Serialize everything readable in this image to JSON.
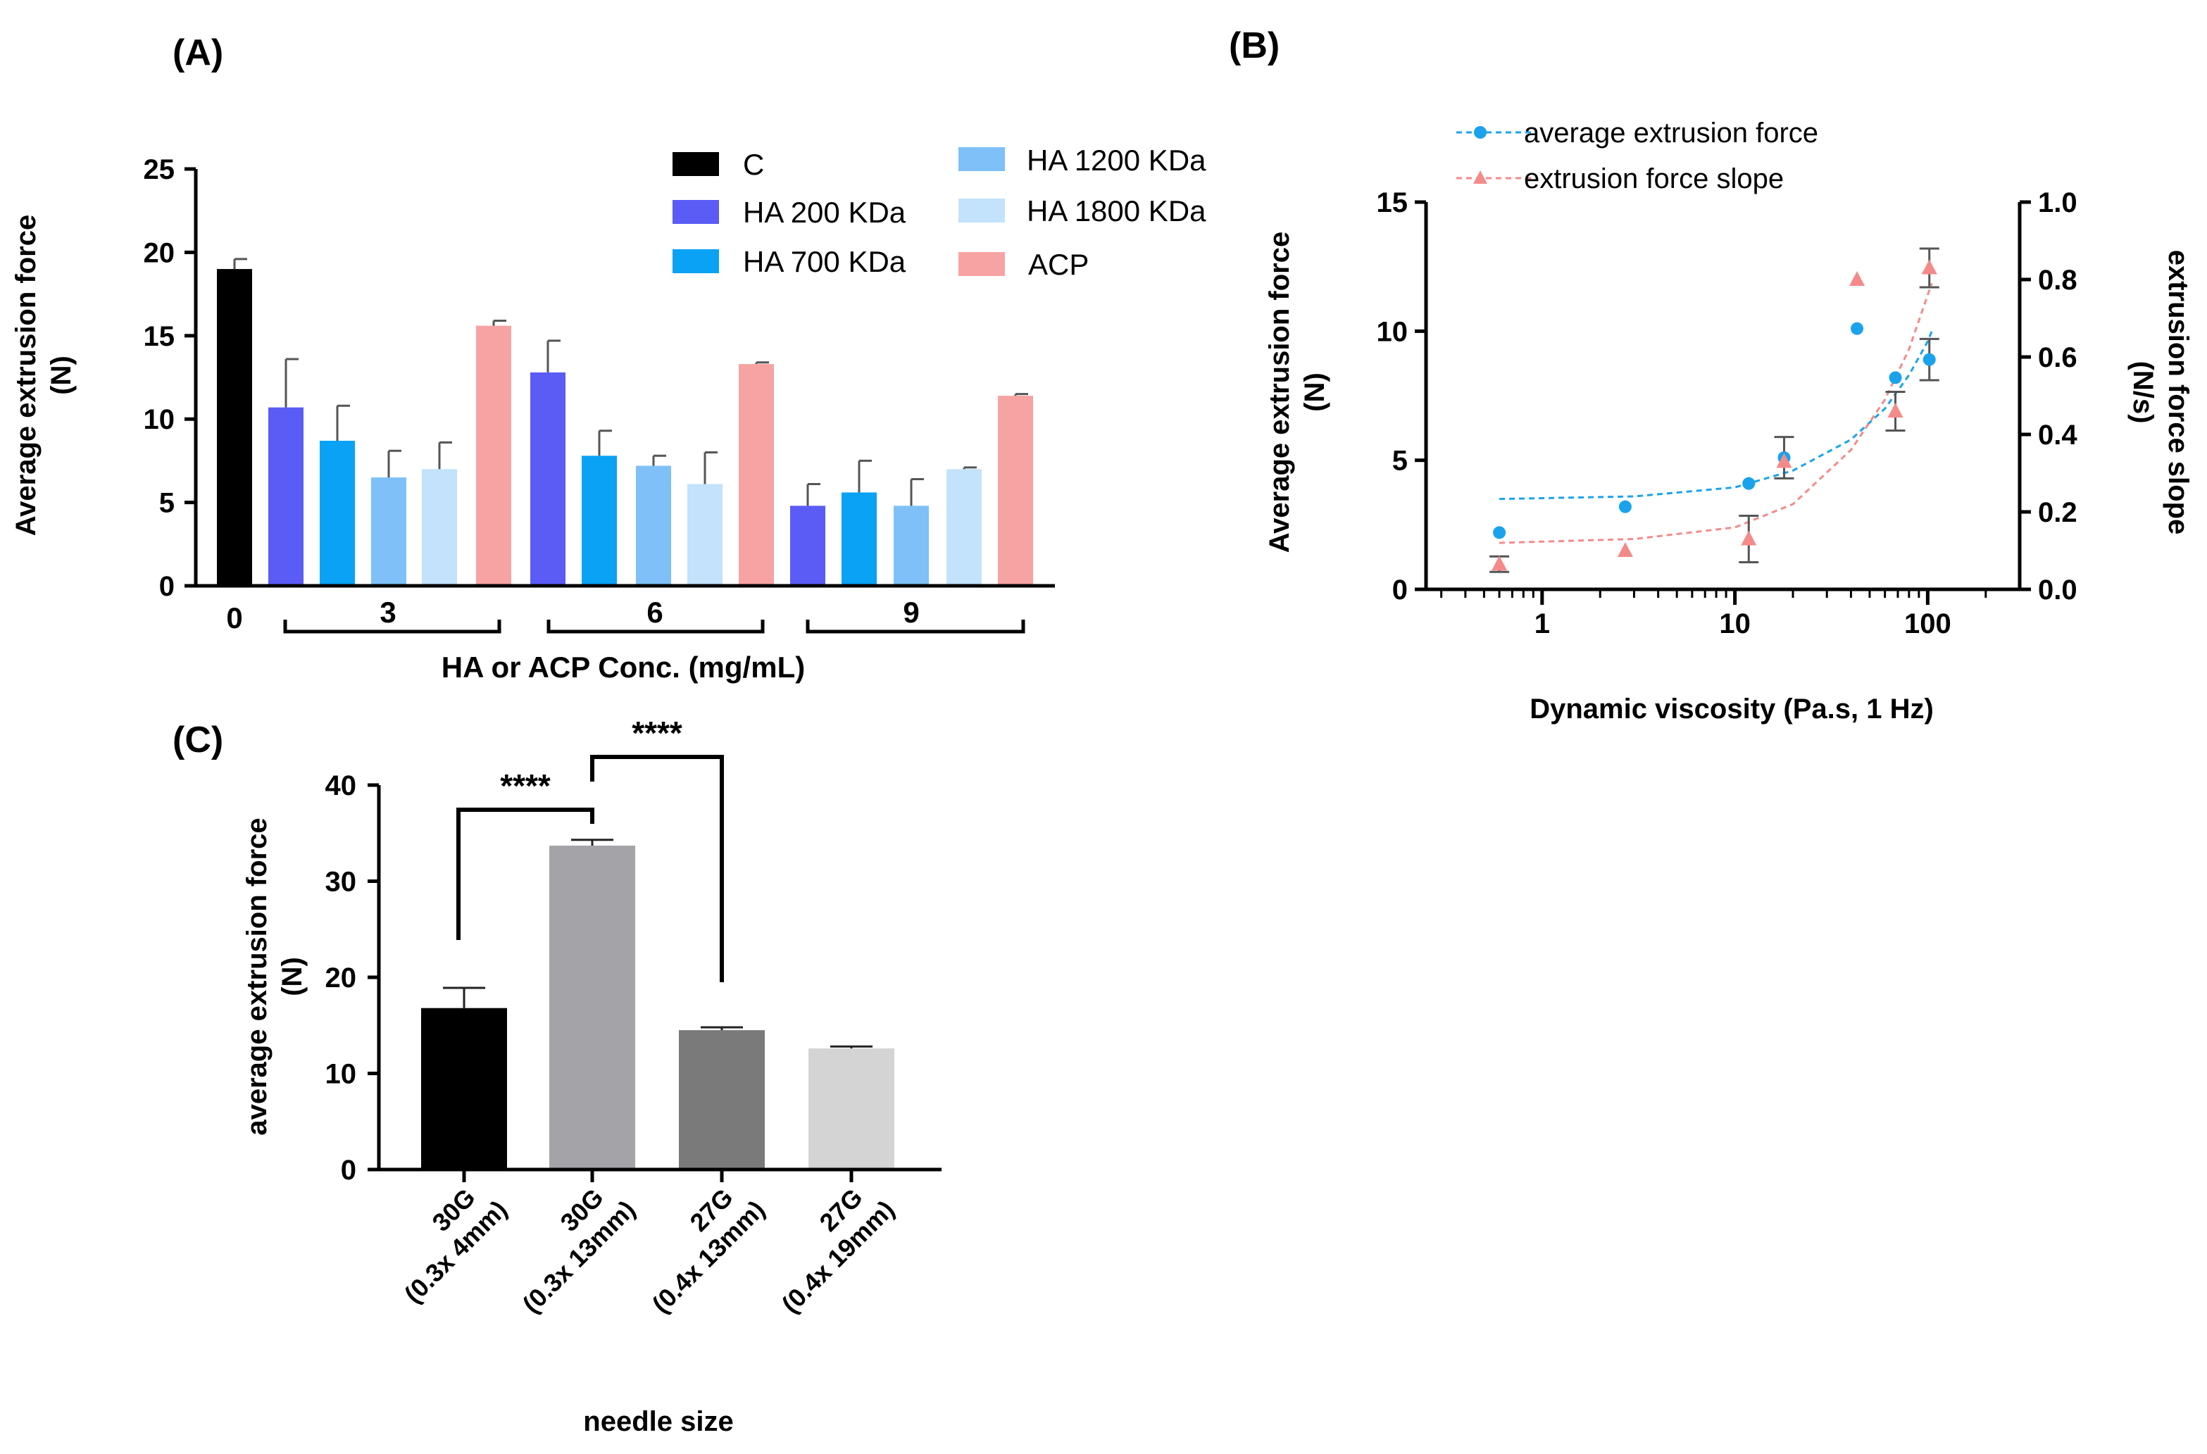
{
  "colors": {
    "C": "#000000",
    "HA 200 KDa": "#5b5bf5",
    "HA 700 KDa": "#0aa2f5",
    "HA 1200 KDa": "#7ec0f7",
    "HA 1800 KDa": "#c3e2fb",
    "ACP": "#f7a3a3",
    "force": "#1aa3ec",
    "slope": "#f58a8a"
  },
  "chart_data": [
    {
      "panel": "(A)",
      "type": "bar",
      "xlabel": "HA or ACP Conc. (mg/mL)",
      "ylabel_line1": "Average extrusion force",
      "ylabel_line2": "(N)",
      "ylim": [
        0,
        25
      ],
      "yticks": [
        0,
        5,
        10,
        15,
        20,
        25
      ],
      "group_labels": [
        "0",
        "3",
        "6",
        "9"
      ],
      "legend": [
        "C",
        "HA 200 KDa",
        "HA 700 KDa",
        "ACP",
        "HA 1200 KDa",
        "HA 1800 KDa"
      ],
      "bars": [
        {
          "group": "0",
          "series": "C",
          "value": 19.0,
          "err": 0.6
        },
        {
          "group": "3",
          "series": "HA 200 KDa",
          "value": 10.7,
          "err": 2.9
        },
        {
          "group": "3",
          "series": "HA 700 KDa",
          "value": 8.7,
          "err": 2.1
        },
        {
          "group": "3",
          "series": "HA 1200 KDa",
          "value": 6.5,
          "err": 1.6
        },
        {
          "group": "3",
          "series": "HA 1800 KDa",
          "value": 7.0,
          "err": 1.6
        },
        {
          "group": "3",
          "series": "ACP",
          "value": 15.6,
          "err": 0.3
        },
        {
          "group": "6",
          "series": "HA 200 KDa",
          "value": 12.8,
          "err": 1.9
        },
        {
          "group": "6",
          "series": "HA 700 KDa",
          "value": 7.8,
          "err": 1.5
        },
        {
          "group": "6",
          "series": "HA 1200 KDa",
          "value": 7.2,
          "err": 0.6
        },
        {
          "group": "6",
          "series": "HA 1800 KDa",
          "value": 6.1,
          "err": 1.9
        },
        {
          "group": "6",
          "series": "ACP",
          "value": 13.3,
          "err": 0.1
        },
        {
          "group": "9",
          "series": "HA 200 KDa",
          "value": 4.8,
          "err": 1.3
        },
        {
          "group": "9",
          "series": "HA 700 KDa",
          "value": 5.6,
          "err": 1.9
        },
        {
          "group": "9",
          "series": "HA 1200 KDa",
          "value": 4.8,
          "err": 1.6
        },
        {
          "group": "9",
          "series": "HA 1800 KDa",
          "value": 7.0,
          "err": 0.1
        },
        {
          "group": "9",
          "series": "ACP",
          "value": 11.4,
          "err": 0.1
        }
      ]
    },
    {
      "panel": "(B)",
      "type": "scatter",
      "x_scale": "log",
      "xlabel": "Dynamic viscosity (Pa.s, 1 Hz)",
      "ylabel_left_line1": "Average extrusion force",
      "ylabel_left_line2": "(N)",
      "ylabel_right_line1": "extrusion force slope",
      "ylabel_right_line2": "(N/s)",
      "xticks": [
        1,
        10,
        100
      ],
      "ylim_left": [
        0,
        15
      ],
      "yticks_left": [
        0,
        5,
        10,
        15
      ],
      "ylim_right": [
        0,
        1.0
      ],
      "yticks_right": [
        "0.0",
        "0.2",
        "0.4",
        "0.6",
        "0.8",
        "1.0"
      ],
      "series": [
        {
          "name": "average extrusion force",
          "axis": "left",
          "marker": "circle",
          "points": [
            {
              "x": 0.6,
              "y": 2.2,
              "err": 0
            },
            {
              "x": 2.7,
              "y": 3.2,
              "err": 0
            },
            {
              "x": 11.8,
              "y": 4.1,
              "err": 0
            },
            {
              "x": 18.0,
              "y": 5.1,
              "err": 0.8
            },
            {
              "x": 43.0,
              "y": 10.1,
              "err": 0
            },
            {
              "x": 68.0,
              "y": 8.2,
              "err": 0
            },
            {
              "x": 102.0,
              "y": 8.9,
              "err": 0.8
            }
          ],
          "fit": [
            [
              0.6,
              3.5
            ],
            [
              3,
              3.6
            ],
            [
              10,
              3.95
            ],
            [
              20,
              4.6
            ],
            [
              40,
              5.8
            ],
            [
              60,
              7.0
            ],
            [
              80,
              8.3
            ],
            [
              100,
              9.6
            ],
            [
              105,
              10.0
            ]
          ]
        },
        {
          "name": "extrusion force slope",
          "axis": "right",
          "marker": "triangle",
          "points": [
            {
              "x": 0.6,
              "y": 0.065,
              "err": 0.02
            },
            {
              "x": 2.7,
              "y": 0.1,
              "err": 0
            },
            {
              "x": 11.8,
              "y": 0.13,
              "err": 0.06
            },
            {
              "x": 18.0,
              "y": 0.33,
              "err": 0
            },
            {
              "x": 43.0,
              "y": 0.8,
              "err": 0
            },
            {
              "x": 68.0,
              "y": 0.46,
              "err": 0.05
            },
            {
              "x": 102.0,
              "y": 0.83,
              "err": 0.05
            }
          ],
          "fit": [
            [
              0.6,
              0.12
            ],
            [
              3,
              0.13
            ],
            [
              10,
              0.16
            ],
            [
              20,
              0.22
            ],
            [
              40,
              0.36
            ],
            [
              60,
              0.49
            ],
            [
              80,
              0.62
            ],
            [
              100,
              0.76
            ],
            [
              105,
              0.79
            ]
          ]
        }
      ]
    },
    {
      "panel": "(C)",
      "type": "bar",
      "xlabel": "needle size",
      "ylabel_line1": "average extrusion force",
      "ylabel_line2": "(N)",
      "ylim": [
        0,
        40
      ],
      "yticks": [
        0,
        10,
        20,
        30,
        40
      ],
      "bars": [
        {
          "line1": "30G",
          "line2": "(0.3x 4mm)",
          "value": 16.8,
          "err": 2.1,
          "color": "#000000"
        },
        {
          "line1": "30G",
          "line2": "(0.3x 13mm)",
          "value": 33.7,
          "err": 0.6,
          "color": "#a3a3a8"
        },
        {
          "line1": "27G",
          "line2": "(0.4x 13mm)",
          "value": 14.5,
          "err": 0.3,
          "color": "#7a7a7a"
        },
        {
          "line1": "27G",
          "line2": "(0.4x 19mm)",
          "value": 12.6,
          "err": 0.2,
          "color": "#d4d4d4"
        }
      ],
      "significance": [
        {
          "label": "****",
          "from": 0,
          "to": 1
        },
        {
          "label": "****",
          "from": 1,
          "to": 2
        }
      ]
    }
  ]
}
